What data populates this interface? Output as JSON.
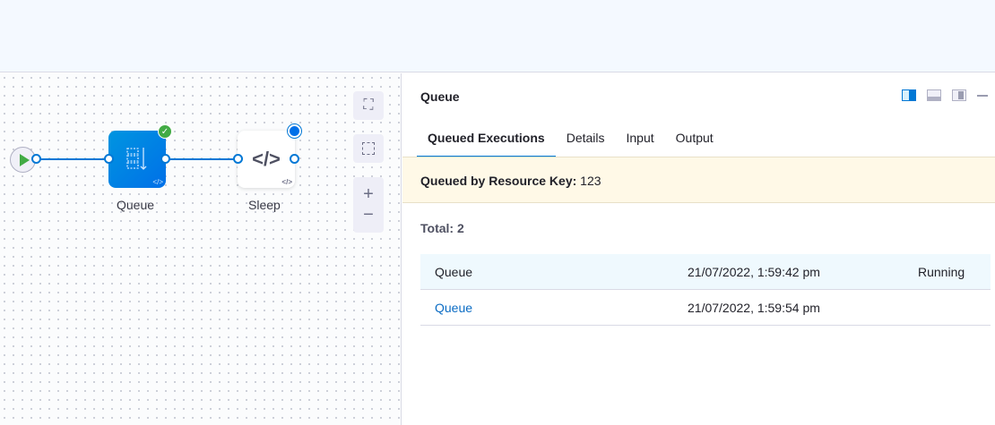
{
  "canvas": {
    "nodes": [
      {
        "label": "Queue",
        "status": "success"
      },
      {
        "label": "Sleep",
        "status": "running"
      }
    ],
    "controls": [
      "fit-to-screen",
      "select-area",
      "zoom-in",
      "zoom-out"
    ]
  },
  "panel": {
    "title": "Queue",
    "tabs": [
      "Queued Executions",
      "Details",
      "Input",
      "Output"
    ],
    "active_tab": "Queued Executions",
    "banner": {
      "label": "Queued by Resource Key:",
      "value": "123"
    },
    "total": "Total: 2",
    "rows": [
      {
        "name": "Queue",
        "time": "21/07/2022, 1:59:42 pm",
        "status": "Running"
      },
      {
        "name": "Queue",
        "time": "21/07/2022, 1:59:54 pm",
        "status": ""
      }
    ]
  },
  "colors": {
    "accent": "#0278d5",
    "success": "#42ab45",
    "banner": "#fff9e7"
  }
}
